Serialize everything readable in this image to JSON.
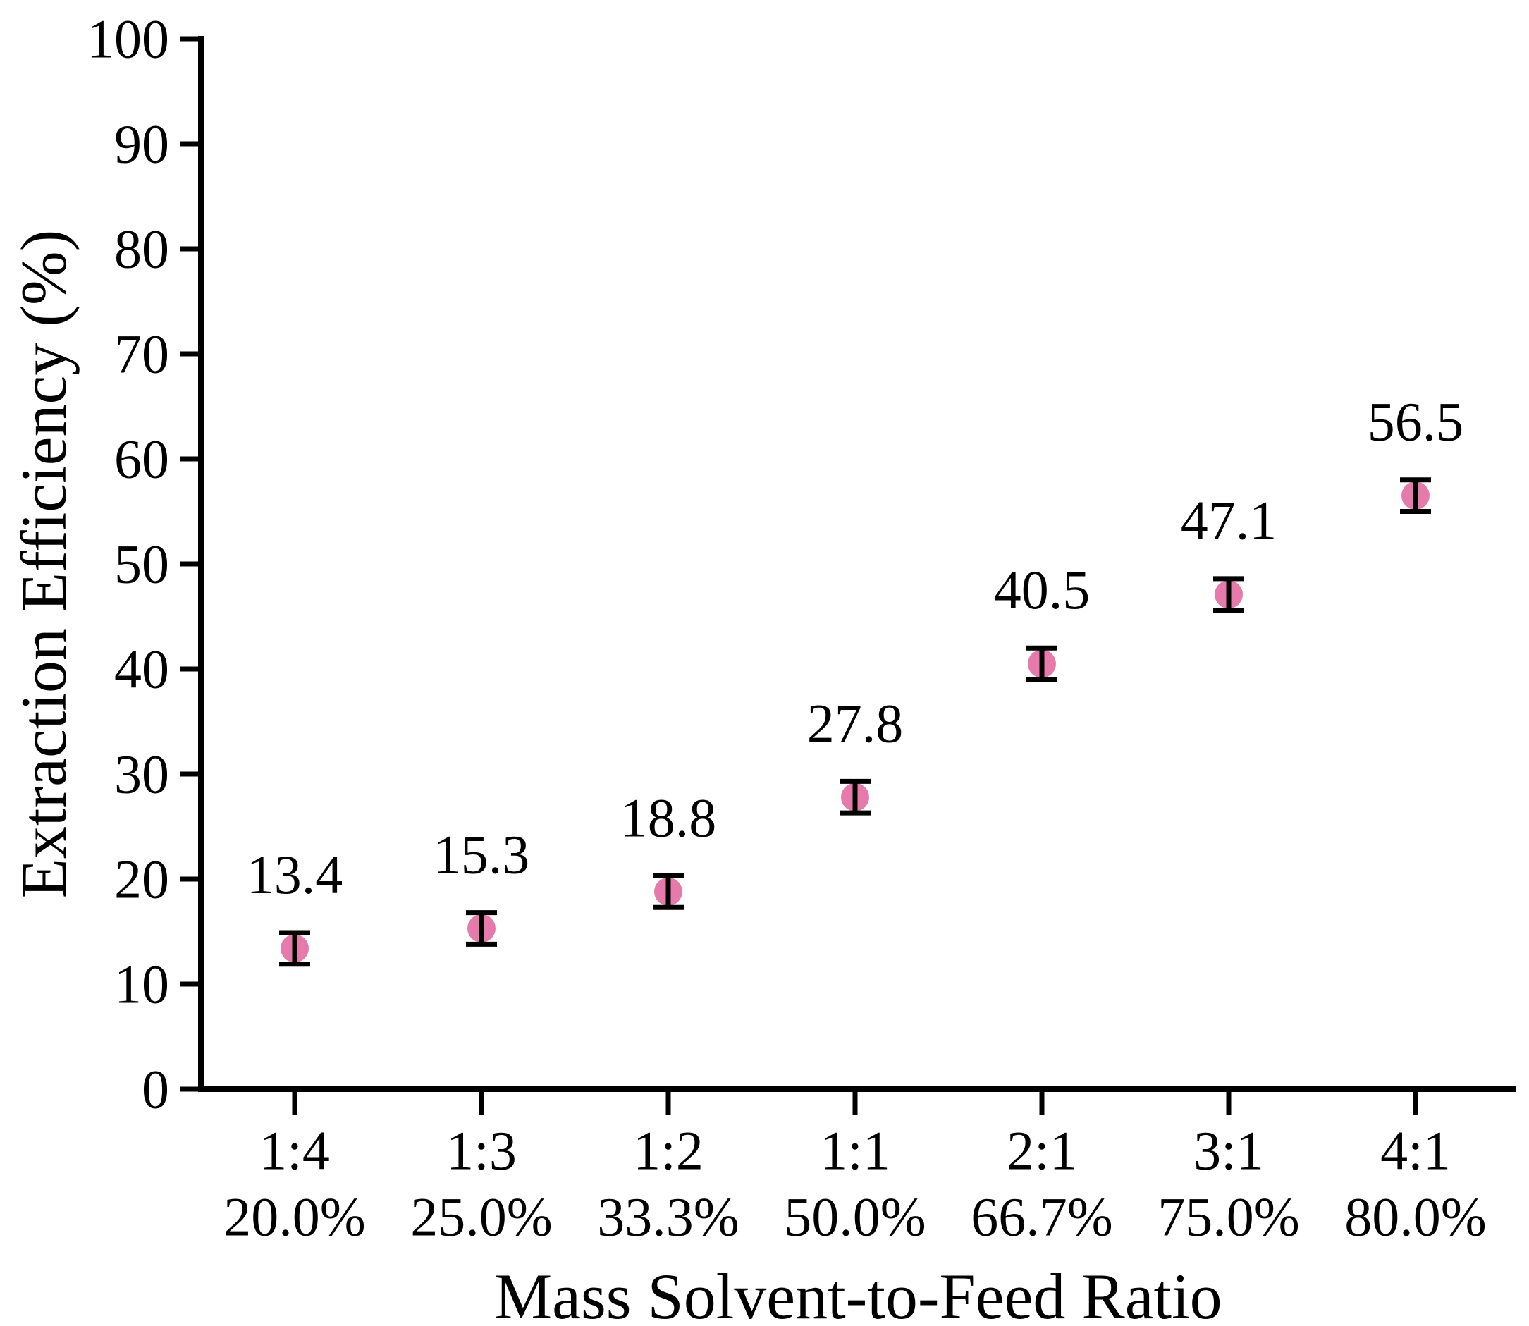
{
  "chart_data": {
    "type": "scatter",
    "title": "",
    "xlabel": "Mass Solvent-to-Feed Ratio",
    "ylabel": "Extraction Efficiency (%)",
    "categories": [
      "1:4",
      "1:3",
      "1:2",
      "1:1",
      "2:1",
      "3:1",
      "4:1"
    ],
    "category_sublabels": [
      "20.0%",
      "25.0%",
      "33.3%",
      "50.0%",
      "66.7%",
      "75.0%",
      "80.0%"
    ],
    "values": [
      13.4,
      15.3,
      18.8,
      27.8,
      40.5,
      47.1,
      56.5
    ],
    "point_labels": [
      "13.4",
      "15.3",
      "18.8",
      "27.8",
      "40.5",
      "47.1",
      "56.5"
    ],
    "error": 1.5,
    "ylim": [
      0,
      100
    ],
    "yticks": [
      0,
      10,
      20,
      30,
      40,
      50,
      60,
      70,
      80,
      90,
      100
    ],
    "ytick_labels": [
      "0",
      "10",
      "20",
      "30",
      "40",
      "50",
      "60",
      "70",
      "80",
      "90",
      "100"
    ],
    "grid": false,
    "legend": "none",
    "marker_color": "#e2649c",
    "marker_opacity": 0.85,
    "errorbar_color": "#000000",
    "axis_color": "#000000",
    "text_color": "#000000",
    "background_color": "#ffffff"
  }
}
